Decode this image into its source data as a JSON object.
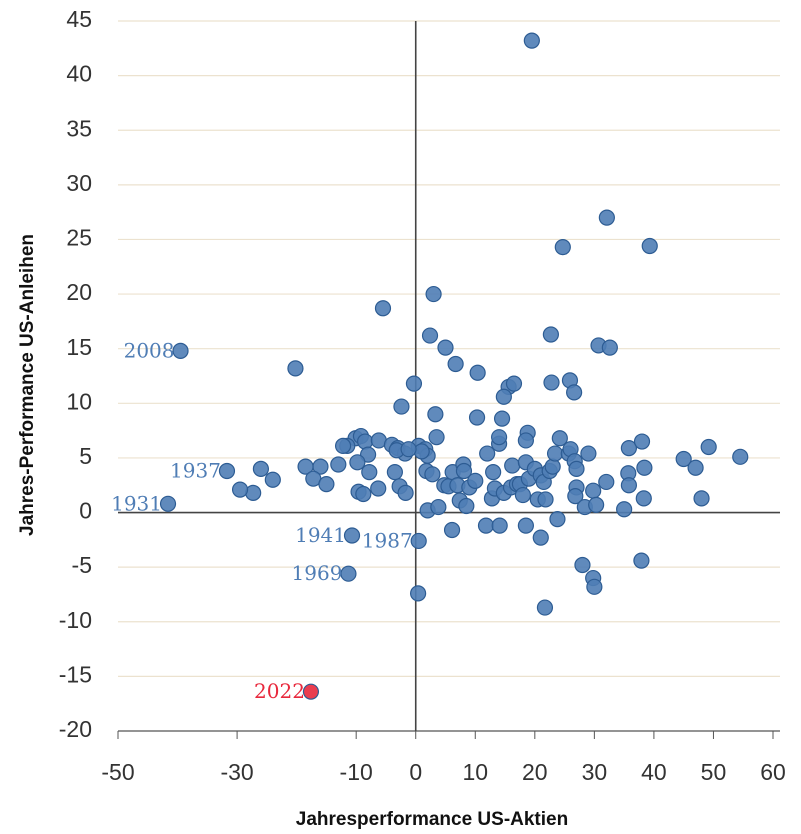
{
  "chart_data": {
    "type": "scatter",
    "xlabel": "Jahresperformance US-Aktien",
    "ylabel": "Jahres-Performance US-Anleihen",
    "xlim": [
      -50,
      60
    ],
    "xticks": [
      -50,
      -30,
      -10,
      0,
      10,
      20,
      30,
      40,
      50,
      60
    ],
    "ylim": [
      -20,
      45
    ],
    "yticks": [
      -20,
      -15,
      -10,
      -5,
      0,
      5,
      10,
      15,
      20,
      25,
      30,
      35,
      40,
      45
    ],
    "grid": true,
    "series": [
      {
        "color": "#4f7db5",
        "x": [
          -39.5,
          -31.7,
          -41.6,
          -10.7,
          0.5,
          -11.3,
          19.5,
          32.1,
          24.7,
          39.3,
          3.0,
          -5.5,
          22.7,
          2.4,
          5.0,
          30.7,
          32.6,
          -20.2,
          6.7,
          10.4,
          -0.3,
          15.6,
          16.5,
          25.9,
          26.6,
          22.8,
          14.8,
          -2.4,
          3.3,
          10.3,
          14.5,
          18.8,
          -10.1,
          -9.2,
          -8.5,
          -6.2,
          -11.5,
          -12.2,
          -4,
          -3,
          -1.8,
          0.5,
          1.6,
          2,
          3.5,
          -8,
          -9.8,
          -13,
          -16,
          -18.5,
          -17.2,
          -15,
          -7.8,
          -3.5,
          -2.7,
          -1.7,
          -9.6,
          -8.8,
          -6.3,
          -26,
          -27.3,
          -29.5,
          -24,
          1.8,
          2.8,
          2,
          4.8,
          5.5,
          6.2,
          7,
          7.4,
          8,
          8.1,
          8.5,
          9,
          10,
          12,
          12.8,
          13,
          13.3,
          14,
          14,
          14.8,
          16,
          16.2,
          17,
          17.5,
          18,
          18.5,
          18.5,
          19,
          20,
          20.5,
          21,
          21.5,
          21.8,
          22.5,
          23,
          23.4,
          24.2,
          25.7,
          26,
          26.7,
          27,
          27,
          26.8,
          28.4,
          29,
          29.8,
          30.3,
          32,
          35,
          35.8,
          35.7,
          35.8,
          38,
          38.4,
          38.3,
          45,
          47,
          48,
          49.2,
          54.5,
          3.8,
          1,
          -3.2,
          -1.2,
          6.1,
          11.8,
          14.1,
          18.5,
          21,
          23.8,
          28,
          29.8,
          30,
          37.9,
          21.7,
          0.4
        ],
        "y": [
          14.8,
          3.8,
          0.8,
          -2.1,
          -2.6,
          -5.6,
          43.2,
          27.0,
          24.3,
          24.4,
          20.0,
          18.7,
          16.3,
          16.2,
          15.1,
          15.3,
          15.1,
          13.2,
          13.6,
          12.8,
          11.8,
          11.5,
          11.8,
          12.1,
          11,
          11.9,
          10.6,
          9.7,
          9,
          8.7,
          8.6,
          7.3,
          6.8,
          7.0,
          6.5,
          6.6,
          6.1,
          6.1,
          6.2,
          5.9,
          5.4,
          6.1,
          5.8,
          5.2,
          6.9,
          5.3,
          4.6,
          4.4,
          4.2,
          4.2,
          3.1,
          2.6,
          3.7,
          3.7,
          2.4,
          1.8,
          1.9,
          1.7,
          2.2,
          4.0,
          1.8,
          2.1,
          3,
          3.8,
          3.5,
          0.2,
          2.5,
          2.4,
          3.7,
          2.5,
          1.1,
          4.4,
          3.8,
          0.6,
          2.3,
          2.9,
          5.4,
          1.3,
          3.7,
          2.2,
          6.3,
          6.9,
          1.8,
          2.3,
          4.3,
          2.6,
          2.6,
          1.6,
          6.6,
          4.6,
          3.1,
          4.0,
          1.2,
          3.4,
          2.8,
          1.2,
          3.8,
          4.2,
          5.4,
          6.8,
          5.4,
          5.8,
          4.7,
          4.0,
          2.3,
          1.5,
          0.5,
          5.4,
          2,
          0.7,
          2.8,
          0.3,
          5.9,
          3.6,
          2.5,
          6.5,
          4.1,
          1.3,
          4.9,
          4.1,
          1.3,
          6,
          5.1,
          0.5,
          5.6,
          5.7,
          5.8,
          -1.6,
          -1.2,
          -1.2,
          -1.2,
          -2.3,
          -0.6,
          -4.8,
          -6,
          -6.8,
          -4.4,
          -8.7,
          -7.4
        ],
        "labels": [
          "2008",
          "1937",
          "1931",
          "1941",
          "1987",
          "1969"
        ]
      },
      {
        "color": "#e8283c",
        "x": [
          -17.6
        ],
        "y": [
          -16.4
        ],
        "labels": [
          "2022"
        ]
      }
    ]
  }
}
